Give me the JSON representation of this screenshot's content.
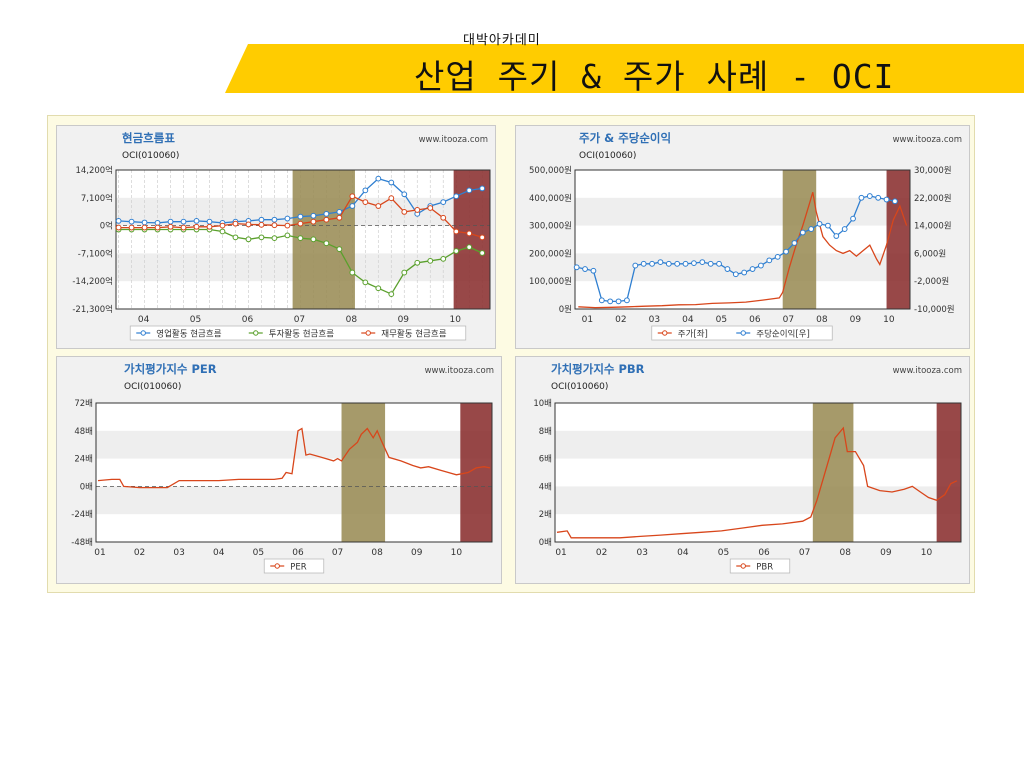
{
  "header": {
    "academy": "대박아카데미",
    "title": "산업 주기 & 주가 사례 - OCI",
    "colors": {
      "banner_yellow": "#FFCC00",
      "text": "#111111"
    }
  },
  "colors": {
    "highlight_khaki": "#9a8c55",
    "highlight_maroon": "#8a2f2f",
    "line_blue": "#2f7fd1",
    "line_green": "#5aa02c",
    "line_red": "#d8461b",
    "plot_band": "#eeeeee"
  },
  "chart_data": [
    {
      "type": "line",
      "title": "현금흐름표",
      "subtitle": "OCI(010060)",
      "source": "www.itooza.com",
      "x_labels": [
        "04",
        "05",
        "06",
        "07",
        "08",
        "09",
        "10"
      ],
      "y_ticks": [
        "14,200억",
        "7,100억",
        "0억",
        "-7,100억",
        "-14,200억",
        "-21,300억"
      ],
      "ylim": [
        -21300,
        14200
      ],
      "x_range": [
        2003.7,
        2010.9
      ],
      "highlights": [
        {
          "from": 2007.1,
          "to": 2008.3,
          "color": "khaki"
        },
        {
          "from": 2010.2,
          "to": 2010.9,
          "color": "maroon"
        }
      ],
      "series": [
        {
          "name": "영업활동 현금흐름",
          "color": "#2f7fd1",
          "x": [
            2003.75,
            2004.0,
            2004.25,
            2004.5,
            2004.75,
            2005.0,
            2005.25,
            2005.5,
            2005.75,
            2006.0,
            2006.25,
            2006.5,
            2006.75,
            2007.0,
            2007.25,
            2007.5,
            2007.75,
            2008.0,
            2008.25,
            2008.5,
            2008.75,
            2009.0,
            2009.25,
            2009.5,
            2009.75,
            2010.0,
            2010.25,
            2010.5,
            2010.75
          ],
          "values": [
            1200,
            1000,
            800,
            700,
            1000,
            1000,
            1200,
            1000,
            700,
            1000,
            1200,
            1500,
            1500,
            1800,
            2300,
            2500,
            3000,
            3500,
            5000,
            9000,
            12000,
            11000,
            8000,
            3000,
            5000,
            6000,
            7500,
            9000,
            9500
          ]
        },
        {
          "name": "투자활동 현금흐름",
          "color": "#5aa02c",
          "x": [
            2003.75,
            2004.0,
            2004.25,
            2004.5,
            2004.75,
            2005.0,
            2005.25,
            2005.5,
            2005.75,
            2006.0,
            2006.25,
            2006.5,
            2006.75,
            2007.0,
            2007.25,
            2007.5,
            2007.75,
            2008.0,
            2008.25,
            2008.5,
            2008.75,
            2009.0,
            2009.25,
            2009.5,
            2009.75,
            2010.0,
            2010.25,
            2010.5,
            2010.75
          ],
          "values": [
            -1000,
            -1000,
            -1000,
            -1000,
            -1000,
            -1000,
            -1000,
            -1000,
            -1500,
            -3000,
            -3500,
            -3000,
            -3200,
            -2500,
            -3200,
            -3500,
            -4500,
            -6000,
            -12000,
            -14500,
            -16000,
            -17500,
            -12000,
            -9500,
            -9000,
            -8500,
            -6500,
            -5500,
            -7000
          ]
        },
        {
          "name": "재무활동 현금흐름",
          "color": "#d8461b",
          "x": [
            2003.75,
            2004.0,
            2004.25,
            2004.5,
            2004.75,
            2005.0,
            2005.25,
            2005.5,
            2005.75,
            2006.0,
            2006.25,
            2006.5,
            2006.75,
            2007.0,
            2007.25,
            2007.5,
            2007.75,
            2008.0,
            2008.25,
            2008.5,
            2008.75,
            2009.0,
            2009.25,
            2009.5,
            2009.75,
            2010.0,
            2010.25,
            2010.5,
            2010.75
          ],
          "values": [
            -500,
            -500,
            -500,
            -500,
            -300,
            -500,
            -300,
            -300,
            0,
            500,
            300,
            200,
            100,
            0,
            500,
            1000,
            1500,
            2000,
            7500,
            6000,
            5000,
            7000,
            3500,
            4000,
            4500,
            2000,
            -1500,
            -2000,
            -3000
          ]
        }
      ],
      "legend_position": "bottom"
    },
    {
      "type": "line",
      "title": "주가 & 주당순이익",
      "subtitle": "OCI(010060)",
      "source": "www.itooza.com",
      "x_labels": [
        "01",
        "02",
        "03",
        "04",
        "05",
        "06",
        "07",
        "08",
        "09",
        "10"
      ],
      "y_ticks_left": [
        "500,000원",
        "400,000원",
        "300,000원",
        "200,000원",
        "100,000원",
        "0원"
      ],
      "y_ticks_right": [
        "30,000원",
        "22,000원",
        "14,000원",
        "6,000원",
        "-2,000원",
        "-10,000원"
      ],
      "ylim_left": [
        0,
        500000
      ],
      "ylim_right": [
        -10000,
        30000
      ],
      "x_range": [
        2000.9,
        2010.9
      ],
      "highlights": [
        {
          "from": 2007.1,
          "to": 2008.1,
          "color": "khaki"
        },
        {
          "from": 2010.2,
          "to": 2010.9,
          "color": "maroon"
        }
      ],
      "series": [
        {
          "name": "주가[좌]",
          "axis": "left",
          "color": "#d8461b",
          "x": [
            2001.0,
            2001.5,
            2002.0,
            2002.5,
            2003.0,
            2003.5,
            2004.0,
            2004.5,
            2005.0,
            2005.5,
            2006.0,
            2006.5,
            2007.0,
            2007.1,
            2007.3,
            2007.5,
            2007.7,
            2007.9,
            2008.0,
            2008.1,
            2008.3,
            2008.5,
            2008.7,
            2008.9,
            2009.1,
            2009.3,
            2009.5,
            2009.7,
            2009.9,
            2010.0,
            2010.2,
            2010.4,
            2010.6,
            2010.8
          ],
          "values": [
            8000,
            5000,
            6000,
            8000,
            10000,
            12000,
            15000,
            16000,
            20000,
            22000,
            25000,
            32000,
            40000,
            60000,
            150000,
            230000,
            300000,
            380000,
            420000,
            350000,
            260000,
            230000,
            210000,
            200000,
            210000,
            190000,
            210000,
            230000,
            180000,
            160000,
            230000,
            320000,
            370000,
            300000
          ]
        },
        {
          "name": "주당순이익[우]",
          "axis": "right",
          "color": "#2f7fd1",
          "x": [
            2000.95,
            2001.2,
            2001.45,
            2001.7,
            2001.95,
            2002.2,
            2002.45,
            2002.7,
            2002.95,
            2003.2,
            2003.45,
            2003.7,
            2003.95,
            2004.2,
            2004.45,
            2004.7,
            2004.95,
            2005.2,
            2005.45,
            2005.7,
            2005.95,
            2006.2,
            2006.45,
            2006.7,
            2006.95,
            2007.2,
            2007.45,
            2007.7,
            2007.95,
            2008.2,
            2008.45,
            2008.7,
            2008.95,
            2009.2,
            2009.45,
            2009.7,
            2009.95,
            2010.2,
            2010.45
          ],
          "values": [
            2000,
            1500,
            1000,
            -7500,
            -7800,
            -7800,
            -7500,
            2500,
            3000,
            3000,
            3500,
            3000,
            3000,
            3000,
            3200,
            3500,
            3000,
            3000,
            1500,
            0,
            500,
            1500,
            2500,
            4000,
            5000,
            6500,
            9000,
            12000,
            13000,
            14500,
            14000,
            11000,
            13000,
            16000,
            22000,
            22500,
            22000,
            21500,
            21000
          ]
        }
      ],
      "legend_position": "bottom"
    },
    {
      "type": "line",
      "title": "가치평가지수 PER",
      "subtitle": "OCI(010060)",
      "source": "www.itooza.com",
      "x_labels": [
        "01",
        "02",
        "03",
        "04",
        "05",
        "06",
        "07",
        "08",
        "09",
        "10"
      ],
      "y_ticks": [
        "72배",
        "48배",
        "24배",
        "0배",
        "-24배",
        "-48배"
      ],
      "ylim": [
        -48,
        72
      ],
      "x_range": [
        2000.9,
        2010.9
      ],
      "highlights": [
        {
          "from": 2007.1,
          "to": 2008.2,
          "color": "khaki"
        },
        {
          "from": 2010.1,
          "to": 2010.9,
          "color": "maroon"
        }
      ],
      "series": [
        {
          "name": "PER",
          "color": "#d8461b",
          "x": [
            2000.95,
            2001.3,
            2001.5,
            2001.6,
            2002.0,
            2002.5,
            2002.7,
            2003.0,
            2003.5,
            2004.0,
            2004.5,
            2005.0,
            2005.4,
            2005.6,
            2005.7,
            2005.85,
            2006.0,
            2006.1,
            2006.2,
            2006.3,
            2006.6,
            2006.9,
            2007.0,
            2007.1,
            2007.3,
            2007.5,
            2007.6,
            2007.75,
            2007.9,
            2008.0,
            2008.1,
            2008.3,
            2008.6,
            2008.9,
            2009.1,
            2009.3,
            2009.6,
            2009.8,
            2010.0,
            2010.3,
            2010.5,
            2010.7,
            2010.85
          ],
          "values": [
            5,
            6,
            6,
            0,
            -1,
            -1,
            -1,
            5,
            5,
            5,
            6,
            6,
            6,
            7,
            12,
            11,
            48,
            50,
            27,
            28,
            25,
            22,
            24,
            22,
            32,
            38,
            45,
            50,
            42,
            48,
            40,
            25,
            22,
            18,
            16,
            17,
            14,
            12,
            10,
            12,
            16,
            17,
            16
          ]
        }
      ],
      "legend_position": "bottom"
    },
    {
      "type": "line",
      "title": "가치평가지수 PBR",
      "subtitle": "OCI(010060)",
      "source": "www.itooza.com",
      "x_labels": [
        "01",
        "02",
        "03",
        "04",
        "05",
        "06",
        "07",
        "08",
        "09",
        "10"
      ],
      "y_ticks": [
        "10배",
        "8배",
        "6배",
        "4배",
        "2배",
        "0배"
      ],
      "ylim": [
        0,
        10
      ],
      "x_range": [
        2000.9,
        2010.9
      ],
      "highlights": [
        {
          "from": 2007.25,
          "to": 2008.25,
          "color": "khaki"
        },
        {
          "from": 2010.3,
          "to": 2010.9,
          "color": "maroon"
        }
      ],
      "series": [
        {
          "name": "PBR",
          "color": "#d8461b",
          "x": [
            2000.95,
            2001.2,
            2001.3,
            2002.0,
            2002.5,
            2003.0,
            2003.5,
            2004.0,
            2004.5,
            2005.0,
            2005.5,
            2006.0,
            2006.5,
            2007.0,
            2007.2,
            2007.35,
            2007.5,
            2007.65,
            2007.8,
            2008.0,
            2008.1,
            2008.3,
            2008.5,
            2008.6,
            2008.9,
            2009.2,
            2009.5,
            2009.7,
            2009.9,
            2010.1,
            2010.3,
            2010.5,
            2010.65,
            2010.8
          ],
          "values": [
            0.7,
            0.8,
            0.3,
            0.3,
            0.3,
            0.4,
            0.5,
            0.6,
            0.7,
            0.8,
            1.0,
            1.2,
            1.3,
            1.5,
            1.8,
            3.0,
            4.5,
            6.0,
            7.5,
            8.2,
            6.5,
            6.5,
            5.5,
            4.0,
            3.7,
            3.6,
            3.8,
            4.0,
            3.6,
            3.2,
            3.0,
            3.4,
            4.2,
            4.4
          ]
        }
      ],
      "legend_position": "bottom"
    }
  ]
}
